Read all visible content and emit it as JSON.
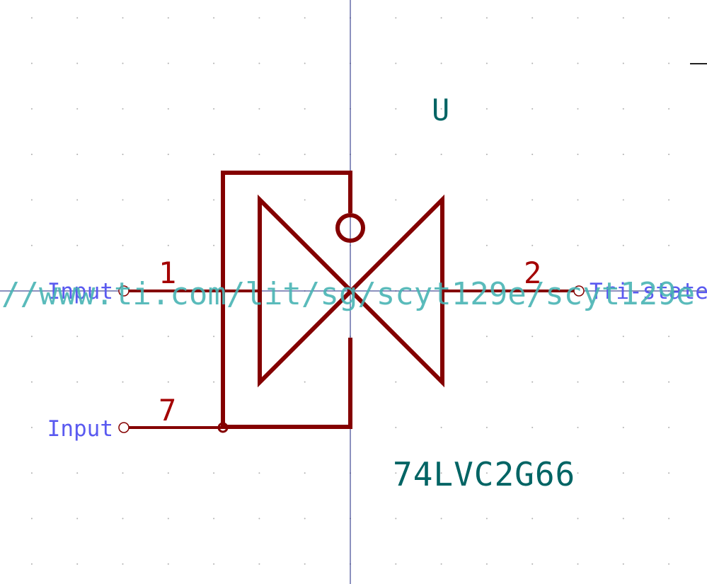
{
  "symbol": {
    "reference": "U",
    "value": "74LVC2G66",
    "datasheet_url": "//www.ti.com/lit/sg/scyt129e/scyt129e"
  },
  "pins": [
    {
      "number": "1",
      "type": "Input"
    },
    {
      "number": "2",
      "type": "Tri-state"
    },
    {
      "number": "7",
      "type": "Input"
    }
  ],
  "colors": {
    "background": "#ffffff",
    "grid_dot": "#b0b0b0",
    "axis": "#1a237e",
    "body": "#840000",
    "pin_number": "#a40000",
    "pin_type": "#5a5af0",
    "field_text": "#006464",
    "url_text": "#48b4b4"
  }
}
